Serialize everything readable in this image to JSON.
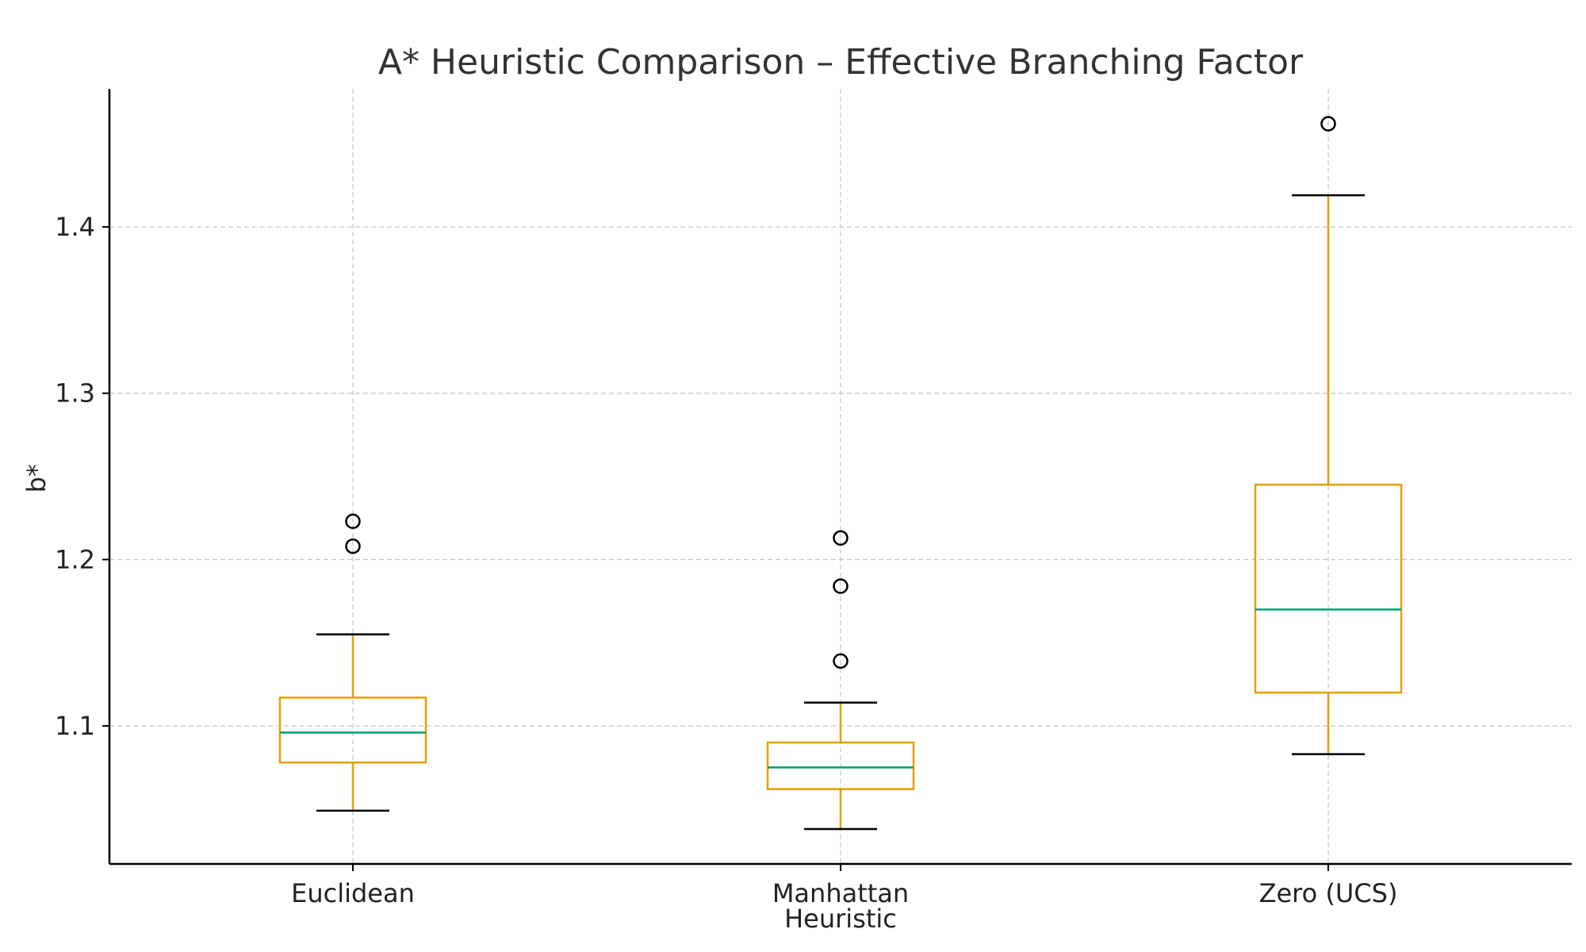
{
  "chart_data": {
    "type": "box",
    "title": "A* Heuristic Comparison – Effective Branching Factor",
    "xlabel": "Heuristic",
    "ylabel": "b*",
    "categories": [
      "Euclidean",
      "Manhattan",
      "Zero (UCS)"
    ],
    "ylim": [
      1.017,
      1.483
    ],
    "yticks": [
      1.1,
      1.2,
      1.3,
      1.4
    ],
    "ytick_labels": [
      "1.1",
      "1.2",
      "1.3",
      "1.4"
    ],
    "grid": true,
    "boxes": [
      {
        "category": "Euclidean",
        "whisker_low": 1.049,
        "q1": 1.078,
        "median": 1.096,
        "q3": 1.117,
        "whisker_high": 1.155,
        "outliers": [
          1.208,
          1.223
        ]
      },
      {
        "category": "Manhattan",
        "whisker_low": 1.038,
        "q1": 1.062,
        "median": 1.075,
        "q3": 1.09,
        "whisker_high": 1.114,
        "outliers": [
          1.139,
          1.184,
          1.213
        ]
      },
      {
        "category": "Zero (UCS)",
        "whisker_low": 1.083,
        "q1": 1.12,
        "median": 1.17,
        "q3": 1.245,
        "whisker_high": 1.419,
        "outliers": [
          1.462
        ]
      }
    ],
    "colors": {
      "box": "#E69F00",
      "median": "#009E73",
      "cap": "#000000",
      "outlier": "#000000",
      "grid": "#c8c8c8",
      "axis": "#000000"
    }
  }
}
